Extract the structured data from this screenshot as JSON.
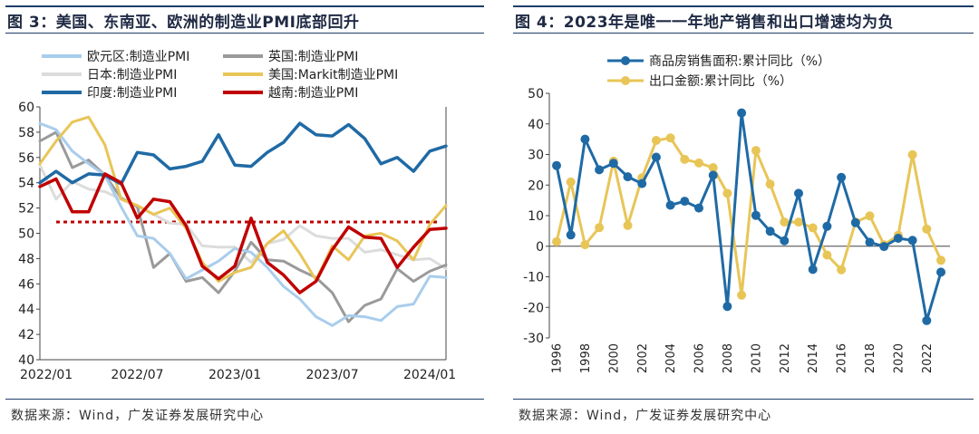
{
  "left": {
    "title": "图 3：美国、东南亚、欧洲的制造业PMI底部回升",
    "source": "数据来源：Wind，广发证券发展研究中心"
  },
  "right": {
    "title": "图 4：2023年是唯一一年地产销售和出口增速均为负",
    "source": "数据来源：Wind，广发证券发展研究中心"
  },
  "chart_data": [
    {
      "type": "line",
      "x": [
        "2022/01",
        "2022/02",
        "2022/03",
        "2022/04",
        "2022/05",
        "2022/06",
        "2022/07",
        "2022/08",
        "2022/09",
        "2022/10",
        "2022/11",
        "2022/12",
        "2023/01",
        "2023/02",
        "2023/03",
        "2023/04",
        "2023/05",
        "2023/06",
        "2023/07",
        "2023/08",
        "2023/09",
        "2023/10",
        "2023/11",
        "2023/12",
        "2024/01",
        "2024/02"
      ],
      "xticks": [
        "2022/01",
        "2022/07",
        "2023/01",
        "2023/07",
        "2024/01"
      ],
      "ylim": [
        40,
        60
      ],
      "yticks": [
        40,
        42,
        44,
        46,
        48,
        50,
        52,
        54,
        56,
        58,
        60
      ],
      "legend_position": "top",
      "reference_line": 50.9,
      "series": [
        {
          "name": "欧元区:制造业PMI",
          "color": "#a9cdec",
          "values": [
            58.7,
            58.2,
            56.5,
            55.5,
            54.6,
            52.1,
            49.8,
            49.6,
            48.4,
            46.4,
            47.1,
            47.8,
            48.8,
            48.5,
            47.3,
            45.8,
            44.8,
            43.4,
            42.7,
            43.5,
            43.4,
            43.1,
            44.2,
            44.4,
            46.6,
            46.5
          ]
        },
        {
          "name": "英国:制造业PMI",
          "color": "#9a9a9a",
          "values": [
            57.3,
            58.0,
            55.2,
            55.8,
            54.6,
            52.8,
            52.1,
            47.3,
            48.4,
            46.2,
            46.5,
            45.3,
            47.0,
            49.3,
            47.9,
            47.8,
            47.1,
            46.5,
            45.3,
            43.0,
            44.3,
            44.8,
            47.2,
            46.2,
            47.0,
            47.5
          ]
        },
        {
          "name": "日本:制造业PMI",
          "color": "#dcdcdc",
          "values": [
            55.4,
            52.7,
            54.1,
            53.5,
            53.3,
            52.7,
            52.1,
            51.5,
            50.8,
            50.7,
            49.0,
            48.9,
            48.9,
            47.7,
            49.2,
            49.5,
            50.6,
            49.8,
            49.6,
            49.6,
            48.5,
            48.7,
            48.3,
            47.9,
            48.0,
            47.2
          ]
        },
        {
          "name": "美国:Markit制造业PMI",
          "color": "#e8c557",
          "values": [
            55.5,
            57.3,
            58.8,
            59.2,
            57.0,
            52.7,
            52.2,
            51.5,
            52.0,
            50.4,
            47.7,
            46.2,
            46.9,
            47.3,
            49.2,
            50.2,
            48.4,
            46.3,
            49.0,
            47.9,
            49.8,
            50.0,
            49.4,
            47.9,
            50.7,
            52.2
          ]
        },
        {
          "name": "印度:制造业PMI",
          "color": "#1f6aa5",
          "values": [
            54.0,
            54.9,
            54.0,
            54.7,
            54.6,
            53.9,
            56.4,
            56.2,
            55.1,
            55.3,
            55.7,
            57.8,
            55.4,
            55.3,
            56.4,
            57.2,
            58.7,
            57.8,
            57.7,
            58.6,
            57.5,
            55.5,
            56.0,
            54.9,
            56.5,
            56.9
          ]
        },
        {
          "name": "越南:制造业PMI",
          "color": "#c00000",
          "values": [
            53.7,
            54.3,
            51.7,
            51.7,
            54.7,
            54.0,
            51.2,
            52.7,
            52.5,
            50.6,
            47.4,
            46.4,
            47.4,
            51.2,
            47.7,
            46.7,
            45.3,
            46.2,
            48.7,
            50.5,
            49.7,
            49.6,
            47.3,
            48.9,
            50.3,
            50.4
          ]
        }
      ]
    },
    {
      "type": "line",
      "x": [
        1996,
        1997,
        1998,
        1999,
        2000,
        2001,
        2002,
        2003,
        2004,
        2005,
        2006,
        2007,
        2008,
        2009,
        2010,
        2011,
        2012,
        2013,
        2014,
        2015,
        2016,
        2017,
        2018,
        2019,
        2020,
        2021,
        2022,
        2023
      ],
      "xticks": [
        "1996",
        "1998",
        "2000",
        "2002",
        "2004",
        "2006",
        "2008",
        "2010",
        "2012",
        "2014",
        "2016",
        "2018",
        "2020",
        "2022"
      ],
      "ylim": [
        -30,
        50
      ],
      "yticks": [
        -30,
        -20,
        -10,
        0,
        10,
        20,
        30,
        40,
        50
      ],
      "legend_position": "top",
      "series": [
        {
          "name": "商品房销售面积:累计同比（%）",
          "color": "#1f6aa5",
          "values": [
            26.4,
            3.7,
            35.0,
            25.0,
            27.1,
            22.7,
            20.5,
            29.1,
            13.4,
            14.7,
            12.5,
            23.2,
            -19.7,
            43.6,
            10.1,
            4.9,
            1.8,
            17.3,
            -7.6,
            6.5,
            22.5,
            7.7,
            1.3,
            -0.1,
            2.6,
            1.9,
            -24.3,
            -8.5
          ]
        },
        {
          "name": "出口金额:累计同比（%）",
          "color": "#e8c557",
          "values": [
            1.5,
            21.0,
            0.5,
            6.1,
            27.8,
            6.8,
            22.4,
            34.6,
            35.4,
            28.4,
            27.2,
            25.7,
            17.3,
            -16.0,
            31.3,
            20.3,
            7.9,
            7.9,
            6.0,
            -2.9,
            -7.7,
            7.9,
            9.9,
            0.5,
            3.6,
            29.9,
            5.6,
            -4.6
          ]
        }
      ]
    }
  ]
}
